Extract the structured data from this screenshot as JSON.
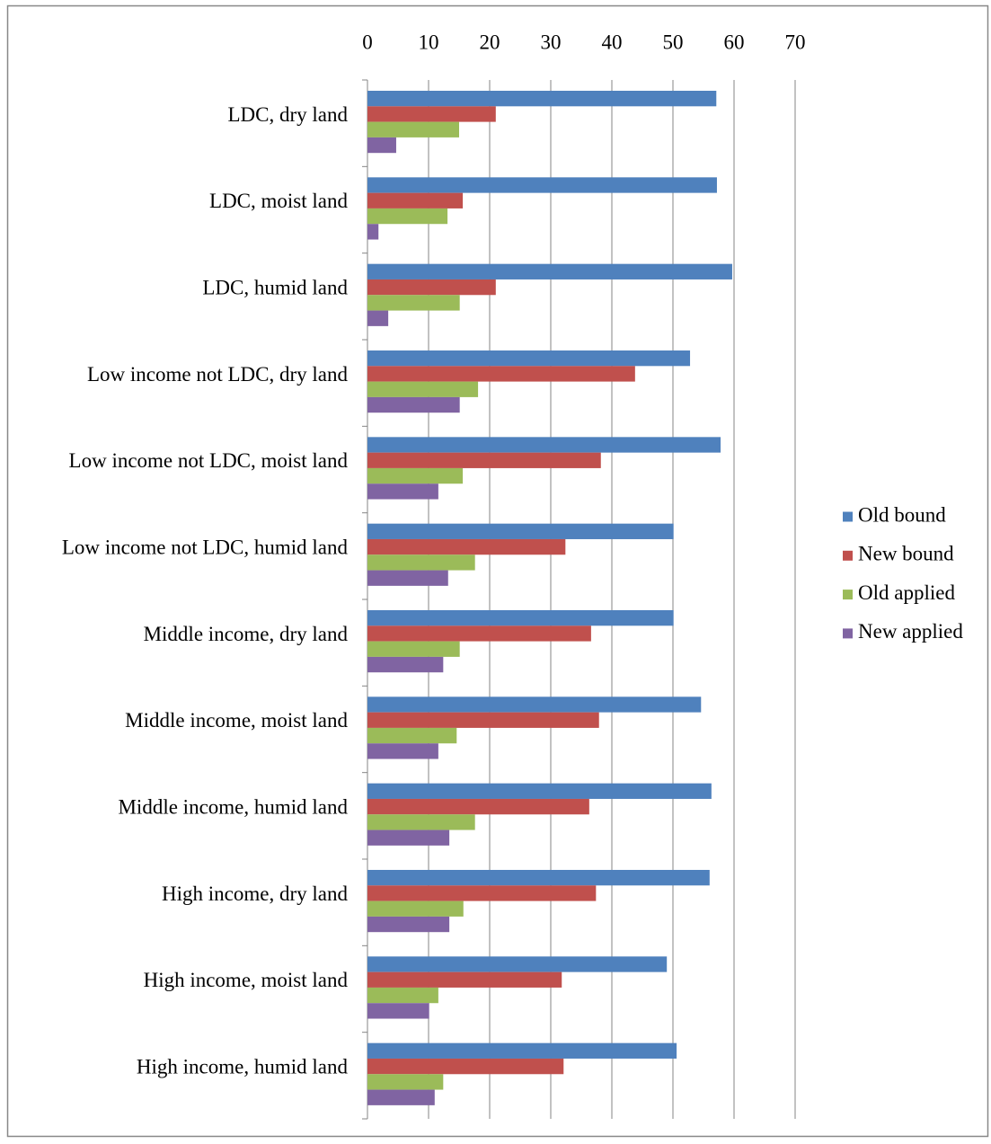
{
  "chart_data": {
    "type": "hbar",
    "categories": [
      "LDC, dry land",
      "LDC, moist land",
      "LDC, humid land",
      "Low income not LDC, dry land",
      "Low income not LDC, moist land",
      "Low income not LDC, humid land",
      "Middle income, dry land",
      "Middle income, moist land",
      "Middle income, humid land",
      "High income, dry land",
      "High income, moist land",
      "High income, humid land"
    ],
    "series": [
      {
        "name": "Old bound",
        "color": "#4f81bd",
        "values": [
          57.1,
          57.2,
          59.7,
          52.8,
          57.8,
          50.1,
          50.1,
          54.6,
          56.3,
          56.0,
          49.0,
          50.6
        ]
      },
      {
        "name": "New bound",
        "color": "#c0504d",
        "values": [
          21.0,
          15.6,
          21.0,
          43.8,
          38.2,
          32.4,
          36.6,
          37.9,
          36.3,
          37.4,
          31.8,
          32.1
        ]
      },
      {
        "name": "Old applied",
        "color": "#9bbb59",
        "values": [
          15.0,
          13.1,
          15.1,
          18.1,
          15.6,
          17.6,
          15.1,
          14.6,
          17.6,
          15.7,
          11.6,
          12.4
        ]
      },
      {
        "name": "New applied",
        "color": "#8064a2",
        "values": [
          4.7,
          1.8,
          3.4,
          15.1,
          11.6,
          13.2,
          12.4,
          11.6,
          13.4,
          13.4,
          10.1,
          11.0
        ]
      }
    ],
    "xlim": [
      0,
      70
    ],
    "xticks": [
      0,
      10,
      20,
      30,
      40,
      50,
      60,
      70
    ],
    "grid": true,
    "legend": "right"
  }
}
